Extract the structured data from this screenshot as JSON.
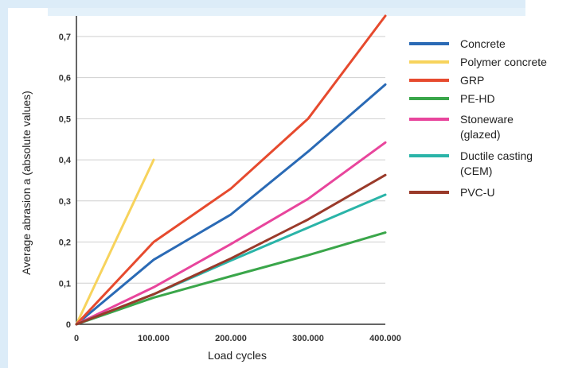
{
  "chart_data": {
    "type": "line",
    "title": "",
    "xlabel": "Load cycles",
    "ylabel": "Average abrasion a (absolute values)",
    "xlim": [
      0,
      400000
    ],
    "ylim": [
      0,
      0.75
    ],
    "x_ticks": [
      0,
      100000,
      200000,
      300000,
      400000
    ],
    "x_tick_labels": [
      "0",
      "100.000",
      "200.000",
      "300.000",
      "400.000"
    ],
    "y_ticks": [
      0,
      0.1,
      0.2,
      0.3,
      0.4,
      0.5,
      0.6,
      0.7
    ],
    "y_tick_labels": [
      "0",
      "0,1",
      "0,2",
      "0,3",
      "0,4",
      "0,5",
      "0,6",
      "0,7"
    ],
    "grid": "horizontal",
    "legend_position": "right",
    "series": [
      {
        "name": "Concrete",
        "color": "#2a6ab5",
        "x": [
          0,
          100000,
          200000,
          300000,
          400000
        ],
        "y": [
          0,
          0.157,
          0.267,
          0.42,
          0.583
        ]
      },
      {
        "name": "Polymer concrete",
        "color": "#f7d35c",
        "x": [
          0,
          100000
        ],
        "y": [
          0,
          0.4
        ]
      },
      {
        "name": "GRP",
        "color": "#e64a2e",
        "x": [
          0,
          100000,
          200000,
          300000,
          400000
        ],
        "y": [
          0,
          0.2,
          0.33,
          0.5,
          0.75
        ]
      },
      {
        "name": "PE-HD",
        "color": "#3aa64a",
        "x": [
          0,
          100000,
          200000,
          300000,
          400000
        ],
        "y": [
          0,
          0.065,
          0.117,
          0.168,
          0.223
        ]
      },
      {
        "name": "Stoneware (glazed)",
        "color": "#e8459c",
        "legend_lines": [
          "Stoneware",
          "(glazed)"
        ],
        "x": [
          0,
          100000,
          200000,
          300000,
          400000
        ],
        "y": [
          0,
          0.09,
          0.195,
          0.305,
          0.442
        ]
      },
      {
        "name": "Ductile casting (CEM)",
        "color": "#2ab4a8",
        "legend_lines": [
          "Ductile casting",
          "(CEM)"
        ],
        "x": [
          0,
          100000,
          200000,
          300000,
          400000
        ],
        "y": [
          0,
          0.073,
          0.155,
          0.235,
          0.315
        ]
      },
      {
        "name": "PVC-U",
        "color": "#9a3a2a",
        "x": [
          0,
          100000,
          200000,
          300000,
          400000
        ],
        "y": [
          0,
          0.073,
          0.16,
          0.255,
          0.363
        ]
      }
    ]
  }
}
